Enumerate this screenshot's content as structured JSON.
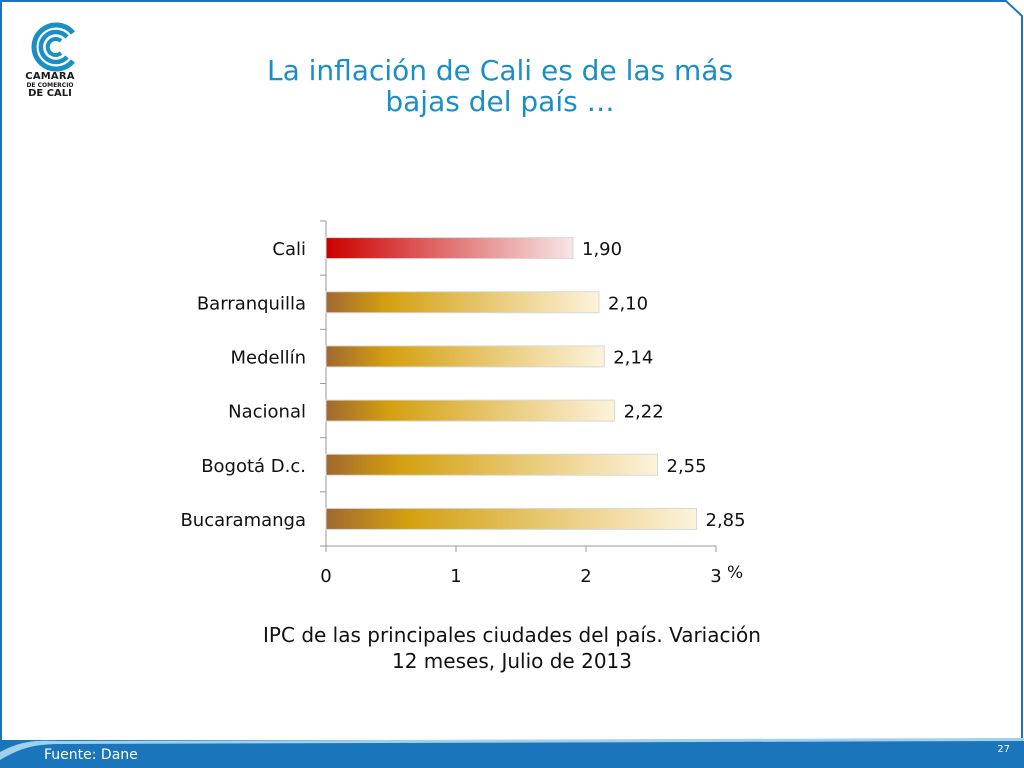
{
  "slide": {
    "title_line1": "La inflación de Cali es de las más",
    "title_line2": "bajas del país …",
    "caption_line1": "IPC de las principales ciudades del país. Variación",
    "caption_line2": "12 meses, Julio de 2013",
    "source": "Fuente: Dane",
    "page_number": "27",
    "accent_color": "#1a8fc7",
    "footer_color": "#1b75bb"
  },
  "logo": {
    "line1": "CAMARA",
    "line2": "DE COMERCIO",
    "line3": "DE CALI",
    "icon": "camara-comercio-cali-logo"
  },
  "chart_data": {
    "type": "bar",
    "orientation": "horizontal",
    "categories": [
      "Cali",
      "Barranquilla",
      "Medellín",
      "Nacional",
      "Bogotá D.c.",
      "Bucaramanga"
    ],
    "values": [
      1.9,
      2.1,
      2.14,
      2.22,
      2.55,
      2.85
    ],
    "value_labels": [
      "1,90",
      "2,10",
      "2,14",
      "2,22",
      "2,55",
      "2,85"
    ],
    "highlight_category": "Cali",
    "colors": {
      "highlight_start": "#cc0000",
      "highlight_end": "#f7e6e6",
      "bar_start": "#a06830",
      "bar_mid": "#d4a010",
      "bar_end": "#fdf3dc"
    },
    "x_ticks": [
      "0",
      "1",
      "2",
      "3"
    ],
    "xlim": [
      0,
      3
    ],
    "x_unit": "%",
    "grid": false,
    "legend": "none"
  }
}
